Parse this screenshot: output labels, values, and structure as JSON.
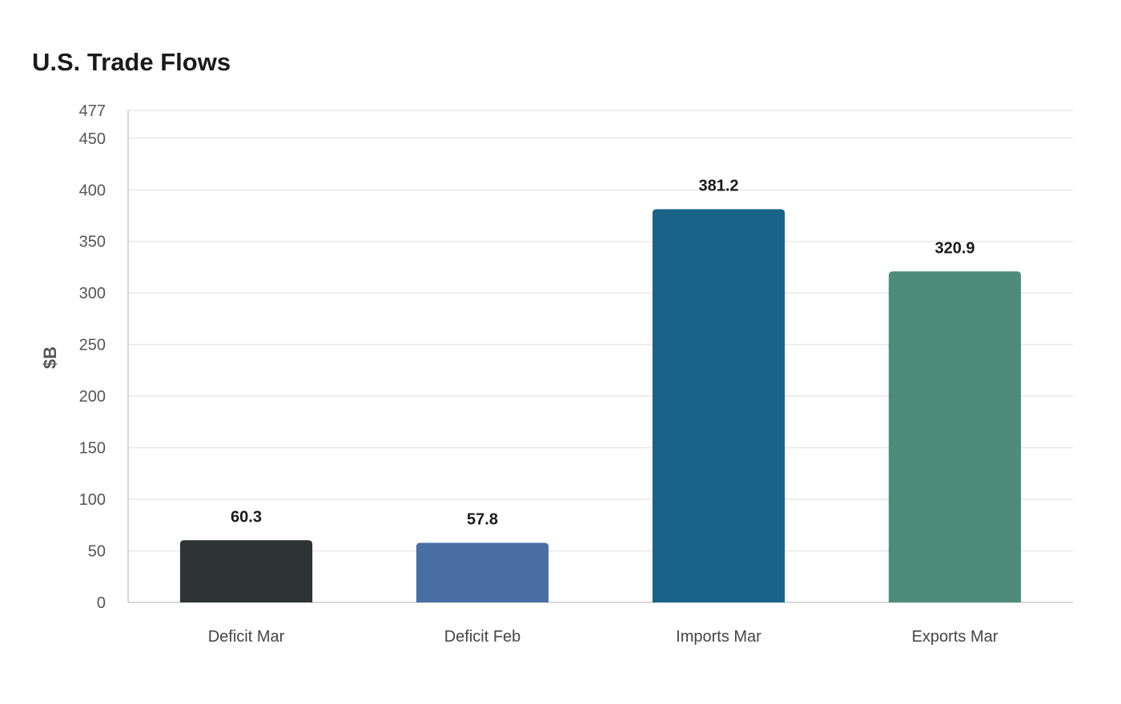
{
  "chart_data": {
    "type": "bar",
    "title": "U.S. Trade Flows",
    "ylabel": "$B",
    "xlabel": "",
    "ylim": [
      0,
      477
    ],
    "yticks": [
      0,
      50,
      100,
      150,
      200,
      250,
      300,
      350,
      400,
      450,
      477
    ],
    "categories": [
      "Deficit Mar",
      "Deficit Feb",
      "Imports Mar",
      "Exports Mar"
    ],
    "values": [
      60.3,
      57.8,
      381.2,
      320.9
    ],
    "value_labels": [
      "60.3",
      "57.8",
      "381.2",
      "320.9"
    ],
    "colors": [
      "#2d3436",
      "#4a6fa5",
      "#196388",
      "#4e8c7a"
    ],
    "grid": true
  }
}
